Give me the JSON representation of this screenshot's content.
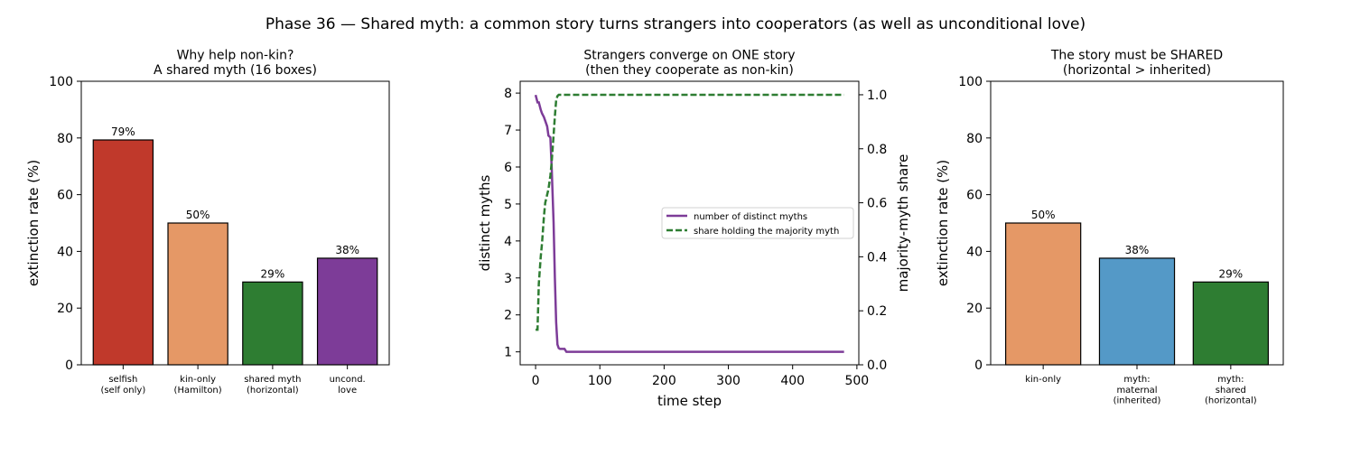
{
  "title": "Phase 36 — Shared myth: a common story turns strangers into cooperators (as well as unconditional love)",
  "chart_data": [
    {
      "type": "bar",
      "title": "Why help non-kin?\nA shared myth (16 boxes)",
      "categories": [
        "selfish\n(self only)",
        "kin-only\n(Hamilton)",
        "shared myth\n(horizontal)",
        "uncond.\nlove"
      ],
      "values": [
        79.3,
        50,
        29.2,
        37.6
      ],
      "value_labels": [
        "79%",
        "50%",
        "29%",
        "38%"
      ],
      "colors": [
        "#c0392b",
        "#e59866",
        "#2e7d32",
        "#7d3c98"
      ],
      "ylabel": "extinction rate (%)",
      "ylim": [
        0,
        100
      ],
      "yticks": [
        0,
        20,
        40,
        60,
        80,
        100
      ]
    },
    {
      "type": "line",
      "title": "Strangers converge on ONE story\n(then they cooperate as non-kin)",
      "xlabel": "time step",
      "ylabel": "distinct myths",
      "y2label": "majority-myth share",
      "x": [
        0,
        3,
        5,
        8,
        10,
        13,
        15,
        18,
        20,
        23,
        25,
        28,
        30,
        32,
        34,
        36,
        38,
        40,
        45,
        48,
        50,
        100,
        200,
        300,
        400,
        480
      ],
      "series": [
        {
          "name": "number of distinct myths",
          "color": "#7d3c98",
          "style": "solid",
          "values": [
            7.95,
            7.75,
            7.75,
            7.55,
            7.45,
            7.35,
            7.25,
            7.1,
            6.85,
            6.8,
            6.0,
            4.5,
            3.0,
            1.8,
            1.2,
            1.1,
            1.08,
            1.08,
            1.08,
            1.0,
            1.0,
            1,
            1,
            1,
            1,
            1
          ]
        },
        {
          "name": "share holding the majority myth",
          "color": "#2e7d32",
          "style": "dashed",
          "axis": "y2",
          "values": [
            0.13,
            0.13,
            0.3,
            0.4,
            0.45,
            0.55,
            0.6,
            0.63,
            0.65,
            0.7,
            0.75,
            0.85,
            0.92,
            0.98,
            0.995,
            1,
            1,
            1,
            1,
            1,
            1,
            1,
            1,
            1,
            1,
            1
          ]
        }
      ],
      "xlim": [
        -24,
        503
      ],
      "xticks": [
        0,
        100,
        200,
        300,
        400,
        500
      ],
      "ylim": [
        0.65,
        8.32
      ],
      "yticks": [
        1,
        2,
        3,
        4,
        5,
        6,
        7,
        8
      ],
      "y2lim": [
        0,
        1.05
      ],
      "y2ticks": [
        {
          "value": 0,
          "label": "0.0"
        },
        0.2,
        0.4,
        0.6,
        0.8,
        {
          "value": 1,
          "label": "1.0"
        }
      ],
      "legend": "center right"
    },
    {
      "type": "bar",
      "title": "The story must be SHARED\n(horizontal > inherited)",
      "categories": [
        "kin-only",
        "myth:\nmaternal\n(inherited)",
        "myth:\nshared\n(horizontal)"
      ],
      "values": [
        50,
        37.6,
        29.2
      ],
      "value_labels": [
        "50%",
        "38%",
        "29%"
      ],
      "colors": [
        "#e59866",
        "#5499c7",
        "#2e7d32"
      ],
      "ylabel": "extinction rate (%)",
      "ylim": [
        0,
        100
      ],
      "yticks": [
        0,
        20,
        40,
        60,
        80,
        100
      ]
    }
  ]
}
